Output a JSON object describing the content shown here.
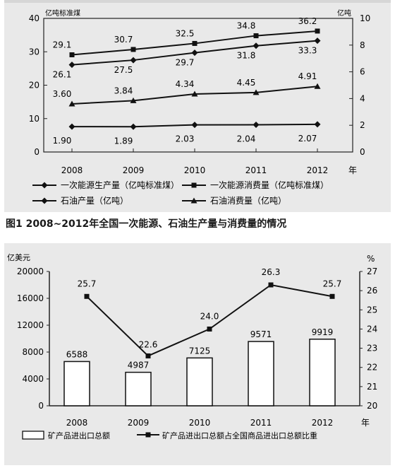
{
  "figure1": {
    "caption": "图1 2008~2012年全国一次能源、石油生产量与消费量的情况",
    "chart_data": {
      "type": "line",
      "categories": [
        "2008",
        "2009",
        "2010",
        "2011",
        "2012"
      ],
      "x_unit": "年",
      "left_axis": {
        "label": "亿吨标准煤",
        "ticks": [
          "0",
          "10",
          "20",
          "30",
          "40"
        ],
        "range": [
          0,
          40
        ]
      },
      "right_axis": {
        "label": "亿吨",
        "ticks": [
          "0",
          "2",
          "4",
          "6",
          "8",
          "10"
        ],
        "range": [
          0,
          10
        ]
      },
      "series": [
        {
          "name": "一次能源消费量（亿吨标准煤）",
          "axis": "left",
          "marker": "square",
          "values": [
            29.1,
            30.7,
            32.5,
            34.8,
            36.2
          ],
          "labels": [
            "29.1",
            "30.7",
            "32.5",
            "34.8",
            "36.2"
          ]
        },
        {
          "name": "一次能源生产量（亿吨标准煤）",
          "axis": "left",
          "marker": "diamond",
          "values": [
            26.1,
            27.5,
            29.7,
            31.8,
            33.3
          ],
          "labels": [
            "26.1",
            "27.5",
            "29.7",
            "31.8",
            "33.3"
          ]
        },
        {
          "name": "石油消费量（亿吨）",
          "axis": "right",
          "marker": "triangle",
          "values": [
            3.6,
            3.84,
            4.34,
            4.45,
            4.91
          ],
          "labels": [
            "3.60",
            "3.84",
            "4.34",
            "4.45",
            "4.91"
          ]
        },
        {
          "name": "石油产量（亿吨）",
          "axis": "right",
          "marker": "diamond",
          "values": [
            1.9,
            1.89,
            2.03,
            2.04,
            2.07
          ],
          "labels": [
            "1.90",
            "1.89",
            "2.03",
            "2.04",
            "2.07"
          ]
        }
      ],
      "legend_order": [
        1,
        0,
        3,
        2
      ]
    }
  },
  "figure2": {
    "chart_data": {
      "type": "bar",
      "categories": [
        "2008",
        "2009",
        "2010",
        "2011",
        "2012"
      ],
      "x_unit": "年",
      "left_axis": {
        "label": "亿美元",
        "ticks": [
          "0",
          "4000",
          "8000",
          "12000",
          "16000",
          "20000"
        ],
        "range": [
          0,
          20000
        ]
      },
      "right_axis": {
        "label": "%",
        "ticks": [
          "20",
          "21",
          "22",
          "23",
          "24",
          "25",
          "26",
          "27"
        ],
        "range": [
          20,
          27
        ]
      },
      "bar_series": {
        "name": "矿产品进出口总额",
        "values": [
          6588,
          4987,
          7125,
          9571,
          9919
        ],
        "labels": [
          "6588",
          "4987",
          "7125",
          "9571",
          "9919"
        ]
      },
      "line_series": {
        "name": "矿产品进出口总额占全国商品进出口总额比重",
        "values": [
          25.7,
          22.6,
          24.0,
          26.3,
          25.7
        ],
        "labels": [
          "25.7",
          "22.6",
          "24.0",
          "26.3",
          "25.7"
        ]
      }
    }
  }
}
